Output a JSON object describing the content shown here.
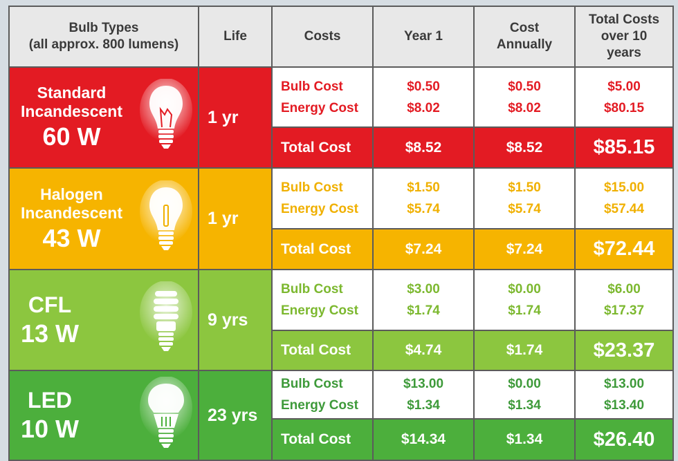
{
  "colors": {
    "standard": "#e31b23",
    "halogen": "#f6b400",
    "cfl": "#8cc63f",
    "led": "#4caf3c",
    "header_bg": "#e8e8e8"
  },
  "headers": {
    "bulb_types_line1": "Bulb Types",
    "bulb_types_line2": "(all approx. 800 lumens)",
    "life": "Life",
    "costs": "Costs",
    "year1": "Year 1",
    "annual_line1": "Cost",
    "annual_line2": "Annually",
    "total10_line1": "Total Costs",
    "total10_line2": "over 10",
    "total10_line3": "years"
  },
  "rows": [
    {
      "name_line1": "Standard",
      "name_line2": "Incandescent",
      "watts": "60 W",
      "icon": "incandescent-bulb-icon",
      "life": "1 yr",
      "bulb_label": "Bulb Cost",
      "energy_label": "Energy Cost",
      "total_label": "Total Cost",
      "year1_bulb": "$0.50",
      "year1_energy": "$8.02",
      "annual_bulb": "$0.50",
      "annual_energy": "$8.02",
      "ten_bulb": "$5.00",
      "ten_energy": "$80.15",
      "year1_total": "$8.52",
      "annual_total": "$8.52",
      "ten_total": "$85.15"
    },
    {
      "name_line1": "Halogen",
      "name_line2": "Incandescent",
      "watts": "43 W",
      "icon": "halogen-bulb-icon",
      "life": "1 yr",
      "bulb_label": "Bulb Cost",
      "energy_label": "Energy Cost",
      "total_label": "Total Cost",
      "year1_bulb": "$1.50",
      "year1_energy": "$5.74",
      "annual_bulb": "$1.50",
      "annual_energy": "$5.74",
      "ten_bulb": "$15.00",
      "ten_energy": "$57.44",
      "year1_total": "$7.24",
      "annual_total": "$7.24",
      "ten_total": "$72.44"
    },
    {
      "name_line1": "CFL",
      "name_line2": "",
      "watts": "13 W",
      "icon": "cfl-bulb-icon",
      "life": "9 yrs",
      "bulb_label": "Bulb Cost",
      "energy_label": "Energy Cost",
      "total_label": "Total Cost",
      "year1_bulb": "$3.00",
      "year1_energy": "$1.74",
      "annual_bulb": "$0.00",
      "annual_energy": "$1.74",
      "ten_bulb": "$6.00",
      "ten_energy": "$17.37",
      "year1_total": "$4.74",
      "annual_total": "$1.74",
      "ten_total": "$23.37"
    },
    {
      "name_line1": "LED",
      "name_line2": "",
      "watts": "10 W",
      "icon": "led-bulb-icon",
      "life": "23 yrs",
      "bulb_label": "Bulb Cost",
      "energy_label": "Energy Cost",
      "total_label": "Total Cost",
      "year1_bulb": "$13.00",
      "year1_energy": "$1.34",
      "annual_bulb": "$0.00",
      "annual_energy": "$1.34",
      "ten_bulb": "$13.00",
      "ten_energy": "$13.40",
      "year1_total": "$14.34",
      "annual_total": "$1.34",
      "ten_total": "$26.40"
    }
  ],
  "chart_data": {
    "type": "table",
    "columns": [
      "Bulb Types (all approx. 800 lumens)",
      "Life",
      "Costs",
      "Year 1",
      "Cost Annually",
      "Total Costs over 10 years"
    ],
    "rows": [
      [
        "Standard Incandescent 60 W",
        "1 yr",
        "Bulb Cost",
        "$0.50",
        "$0.50",
        "$5.00"
      ],
      [
        "Standard Incandescent 60 W",
        "1 yr",
        "Energy Cost",
        "$8.02",
        "$8.02",
        "$80.15"
      ],
      [
        "Standard Incandescent 60 W",
        "1 yr",
        "Total Cost",
        "$8.52",
        "$8.52",
        "$85.15"
      ],
      [
        "Halogen Incandescent 43 W",
        "1 yr",
        "Bulb Cost",
        "$1.50",
        "$1.50",
        "$15.00"
      ],
      [
        "Halogen Incandescent 43 W",
        "1 yr",
        "Energy Cost",
        "$5.74",
        "$5.74",
        "$57.44"
      ],
      [
        "Halogen Incandescent 43 W",
        "1 yr",
        "Total Cost",
        "$7.24",
        "$7.24",
        "$72.44"
      ],
      [
        "CFL 13 W",
        "9 yrs",
        "Bulb Cost",
        "$3.00",
        "$0.00",
        "$6.00"
      ],
      [
        "CFL 13 W",
        "9 yrs",
        "Energy Cost",
        "$1.74",
        "$1.74",
        "$17.37"
      ],
      [
        "CFL 13 W",
        "9 yrs",
        "Total Cost",
        "$4.74",
        "$1.74",
        "$23.37"
      ],
      [
        "LED 10 W",
        "23 yrs",
        "Bulb Cost",
        "$13.00",
        "$0.00",
        "$13.00"
      ],
      [
        "LED 10 W",
        "23 yrs",
        "Energy Cost",
        "$1.34",
        "$1.34",
        "$13.40"
      ],
      [
        "LED 10 W",
        "23 yrs",
        "Total Cost",
        "$14.34",
        "$1.34",
        "$26.40"
      ]
    ]
  }
}
